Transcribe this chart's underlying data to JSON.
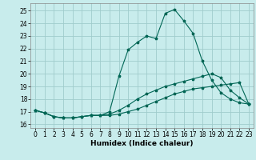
{
  "xlabel": "Humidex (Indice chaleur)",
  "background_color": "#c8ecec",
  "grid_color": "#a0cccc",
  "line_color": "#006655",
  "xlim": [
    -0.5,
    23.5
  ],
  "ylim": [
    15.7,
    25.6
  ],
  "yticks": [
    16,
    17,
    18,
    19,
    20,
    21,
    22,
    23,
    24,
    25
  ],
  "xticks": [
    0,
    1,
    2,
    3,
    4,
    5,
    6,
    7,
    8,
    9,
    10,
    11,
    12,
    13,
    14,
    15,
    16,
    17,
    18,
    19,
    20,
    21,
    22,
    23
  ],
  "line1_x": [
    0,
    1,
    2,
    3,
    4,
    5,
    6,
    7,
    8,
    9,
    10,
    11,
    12,
    13,
    14,
    15,
    16,
    17,
    18,
    19,
    20,
    21,
    22,
    23
  ],
  "line1_y": [
    17.1,
    16.9,
    16.6,
    16.5,
    16.5,
    16.6,
    16.7,
    16.7,
    16.7,
    16.8,
    17.0,
    17.2,
    17.5,
    17.8,
    18.1,
    18.4,
    18.6,
    18.8,
    18.9,
    19.0,
    19.1,
    19.2,
    19.3,
    17.6
  ],
  "line2_x": [
    0,
    1,
    2,
    3,
    4,
    5,
    6,
    7,
    8,
    9,
    10,
    11,
    12,
    13,
    14,
    15,
    16,
    17,
    18,
    19,
    20,
    21,
    22,
    23
  ],
  "line2_y": [
    17.1,
    16.9,
    16.6,
    16.5,
    16.5,
    16.6,
    16.7,
    16.7,
    17.0,
    19.8,
    21.9,
    22.5,
    23.0,
    22.8,
    24.8,
    25.1,
    24.2,
    23.2,
    21.0,
    19.5,
    18.5,
    18.0,
    17.7,
    17.6
  ],
  "line3_x": [
    0,
    1,
    2,
    3,
    4,
    5,
    6,
    7,
    8,
    9,
    10,
    11,
    12,
    13,
    14,
    15,
    16,
    17,
    18,
    19,
    20,
    21,
    22,
    23
  ],
  "line3_y": [
    17.1,
    16.9,
    16.6,
    16.5,
    16.5,
    16.6,
    16.7,
    16.7,
    16.8,
    17.1,
    17.5,
    18.0,
    18.4,
    18.7,
    19.0,
    19.2,
    19.4,
    19.6,
    19.8,
    20.0,
    19.7,
    18.7,
    18.1,
    17.6
  ],
  "xlabel_fontsize": 6.5,
  "tick_fontsize": 5.5
}
